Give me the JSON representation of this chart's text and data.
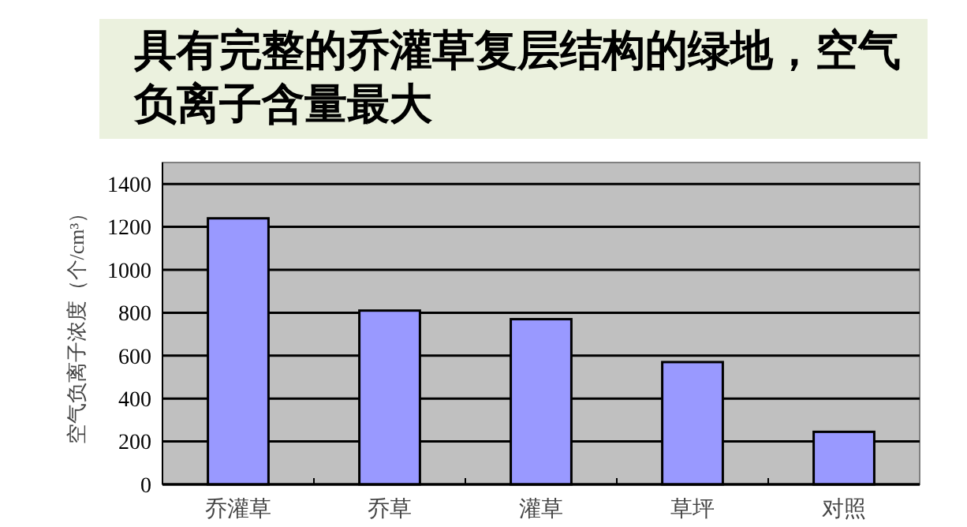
{
  "chart_data": {
    "type": "bar",
    "title": "具有完整的乔灌草复层结构的绿地，空气负离子含量最大",
    "ylabel": "空气负离子浓度（个/cm³）",
    "categories": [
      "乔灌草",
      "乔草",
      "灌草",
      "草坪",
      "对照"
    ],
    "values": [
      1240,
      810,
      770,
      570,
      245
    ],
    "color": "#9999ff",
    "ylim": [
      0,
      1500
    ],
    "yticks": [
      0,
      200,
      400,
      600,
      800,
      1000,
      1200,
      1400
    ],
    "grid": "y"
  }
}
